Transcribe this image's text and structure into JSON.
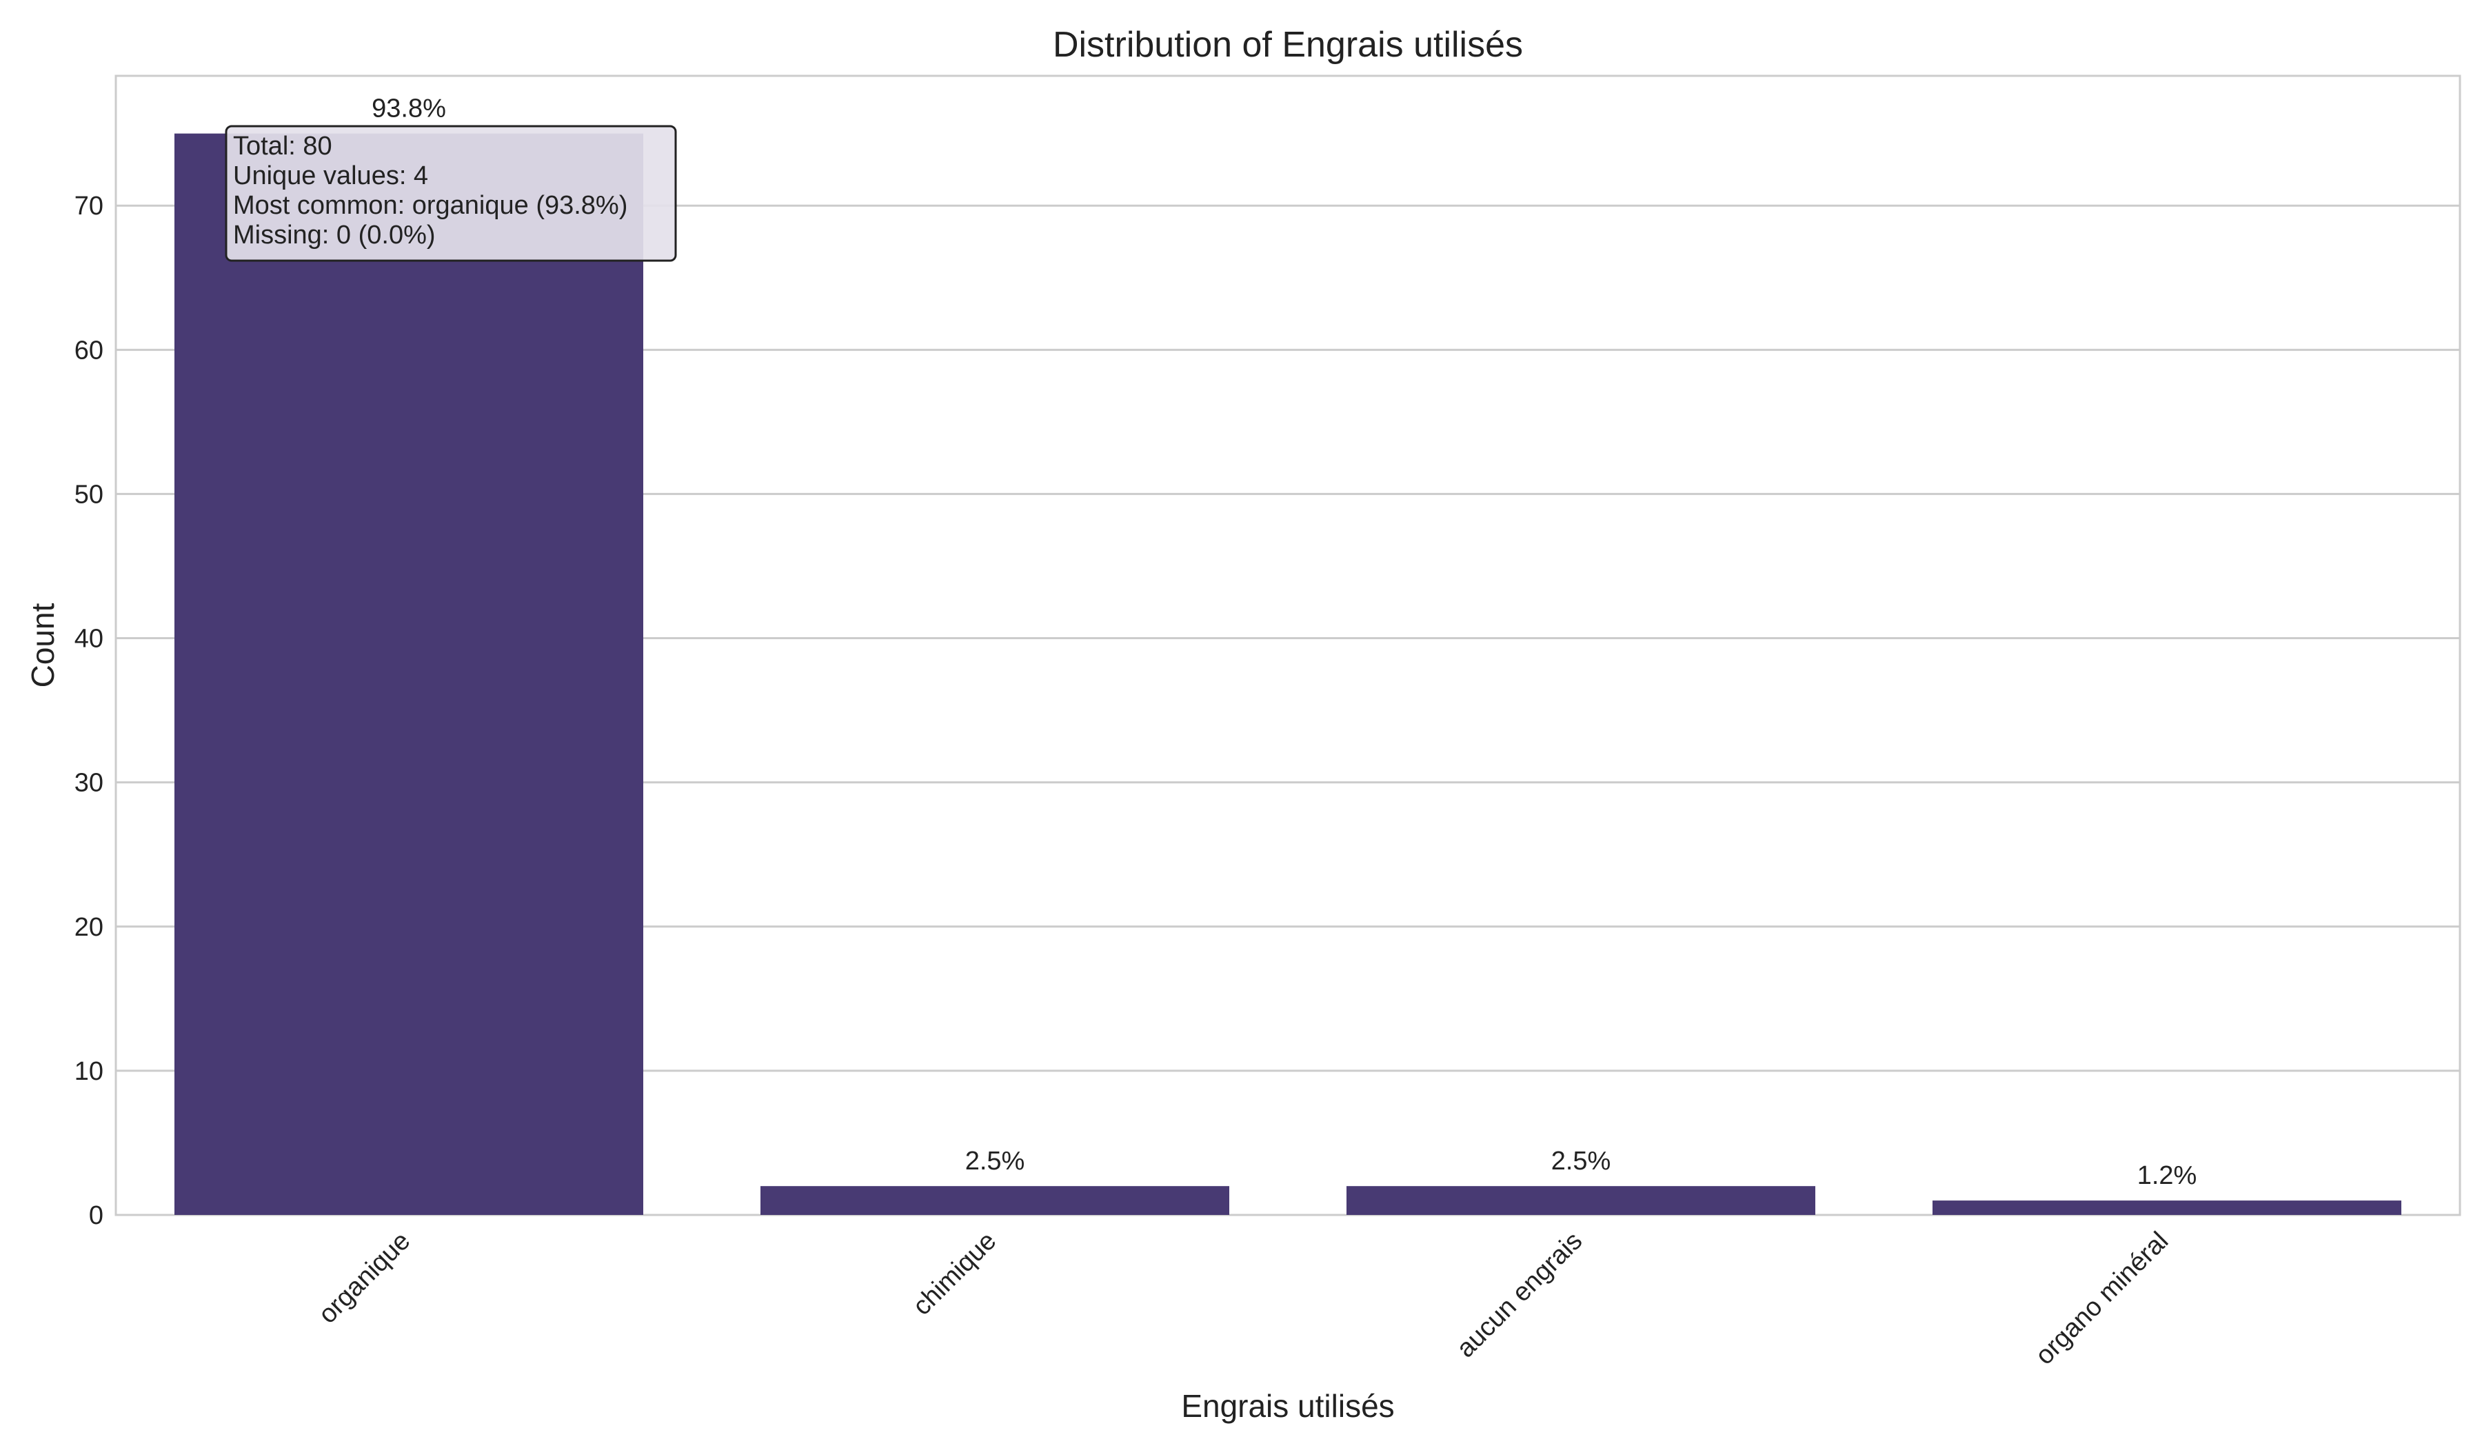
{
  "chart_data": {
    "type": "bar",
    "title": "Distribution of Engrais utilisés",
    "xlabel": "Engrais utilisés",
    "ylabel": "Count",
    "categories": [
      "organique",
      "chimique",
      "aucun engrais",
      "organo minéral"
    ],
    "values": [
      75,
      2,
      2,
      1
    ],
    "percent_labels": [
      "93.8%",
      "2.5%",
      "2.5%",
      "1.2%"
    ],
    "ylim": [
      0,
      79
    ],
    "yticks": [
      0,
      10,
      20,
      30,
      40,
      50,
      60,
      70
    ],
    "grid": true,
    "bar_color": "#483a73",
    "stats_box": {
      "lines": [
        "Total: 80",
        "Unique values: 4",
        "Most common: organique (93.8%)",
        "Missing: 0 (0.0%)"
      ]
    }
  }
}
